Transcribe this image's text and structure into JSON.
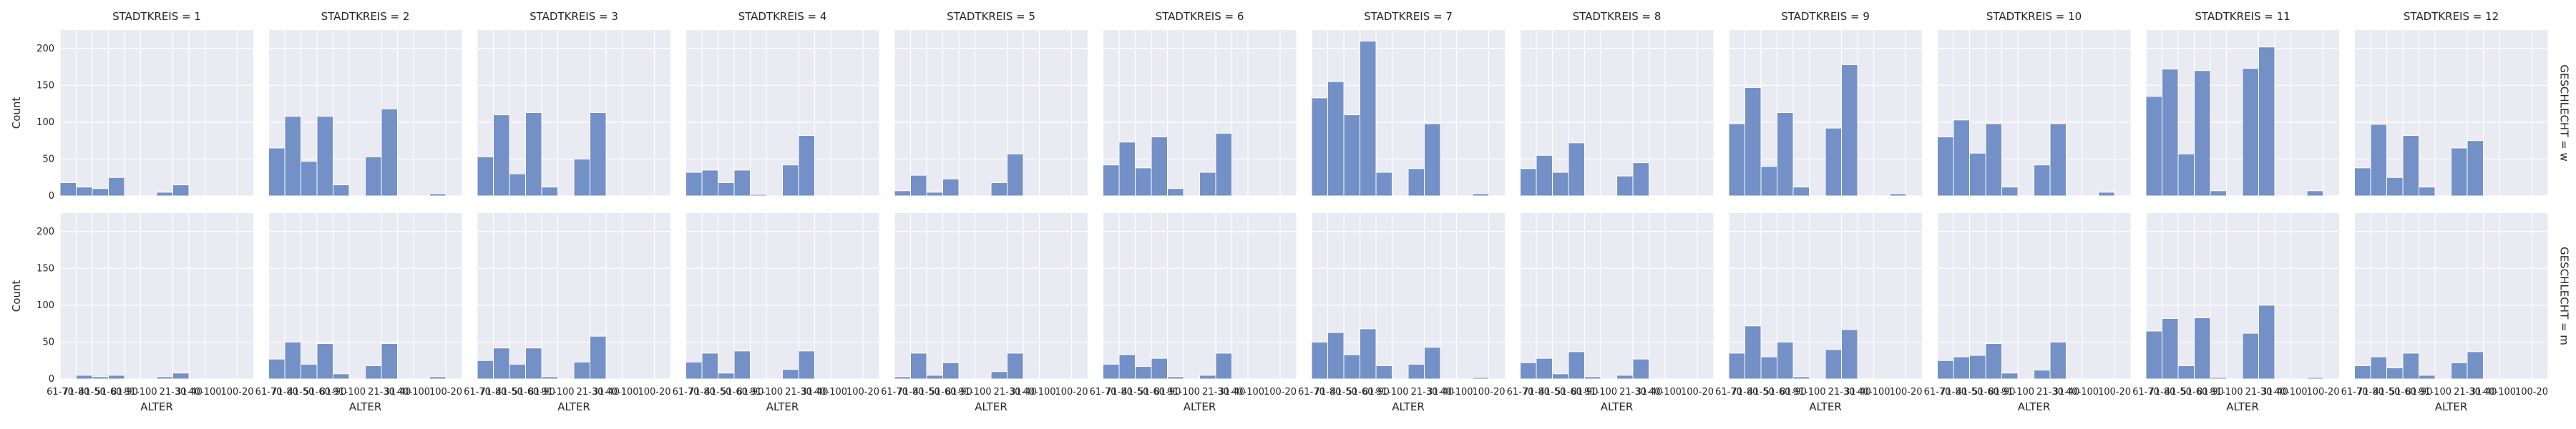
{
  "chart_data": {
    "type": "bar",
    "facet_col_labels": [
      "STADTKREIS = 1",
      "STADTKREIS = 2",
      "STADTKREIS = 3",
      "STADTKREIS = 4",
      "STADTKREIS = 5",
      "STADTKREIS = 6",
      "STADTKREIS = 7",
      "STADTKREIS = 8",
      "STADTKREIS = 9",
      "STADTKREIS = 10",
      "STADTKREIS = 11",
      "STADTKREIS = 12"
    ],
    "facet_row_labels": [
      "GESCHLECHT = w",
      "GESCHLECHT = m"
    ],
    "xlabel": "ALTER",
    "ylabel": "Count",
    "ylim": [
      0,
      225
    ],
    "yticks": [
      0,
      50,
      100,
      150,
      200
    ],
    "x_tick_labels": [
      "61-70",
      "71-80",
      "41-50",
      "51-60",
      "81-90",
      "91-100",
      "21-30",
      "31-40",
      "40-100",
      "100-20"
    ],
    "x_tick_positions": [
      0,
      1,
      2,
      3,
      4,
      5,
      7,
      8,
      9,
      11
    ],
    "bins": 12,
    "grid": true,
    "bar_color": "#7391c6",
    "panel_bg": "#eaeaf2",
    "series": [
      {
        "values": [
          [
            18,
            12,
            10,
            25,
            0,
            0,
            5,
            15,
            0,
            0,
            0,
            0
          ],
          [
            65,
            108,
            47,
            108,
            15,
            0,
            53,
            118,
            0,
            0,
            3,
            0
          ],
          [
            53,
            110,
            30,
            113,
            12,
            0,
            50,
            113,
            0,
            0,
            0,
            0
          ],
          [
            32,
            35,
            18,
            35,
            2,
            0,
            42,
            82,
            0,
            0,
            0,
            0
          ],
          [
            7,
            28,
            5,
            23,
            0,
            0,
            18,
            57,
            0,
            0,
            0,
            0
          ],
          [
            42,
            73,
            38,
            80,
            10,
            0,
            32,
            85,
            0,
            0,
            0,
            0
          ],
          [
            133,
            155,
            110,
            210,
            32,
            0,
            37,
            98,
            0,
            0,
            3,
            0
          ],
          [
            37,
            55,
            32,
            72,
            0,
            0,
            27,
            45,
            0,
            0,
            0,
            0
          ],
          [
            98,
            147,
            40,
            113,
            12,
            0,
            92,
            178,
            0,
            0,
            3,
            0
          ],
          [
            80,
            103,
            58,
            98,
            12,
            0,
            42,
            98,
            0,
            0,
            5,
            0
          ],
          [
            135,
            172,
            57,
            170,
            7,
            0,
            173,
            202,
            0,
            0,
            7,
            0
          ],
          [
            38,
            97,
            25,
            82,
            12,
            0,
            65,
            75,
            0,
            0,
            0,
            0
          ]
        ]
      },
      {
        "values": [
          [
            0,
            5,
            3,
            5,
            0,
            0,
            3,
            8,
            0,
            0,
            0,
            0
          ],
          [
            27,
            50,
            20,
            48,
            7,
            0,
            18,
            48,
            0,
            0,
            3,
            0
          ],
          [
            25,
            42,
            20,
            42,
            3,
            0,
            23,
            58,
            0,
            0,
            0,
            0
          ],
          [
            23,
            35,
            8,
            38,
            0,
            0,
            13,
            38,
            0,
            0,
            0,
            0
          ],
          [
            3,
            35,
            5,
            22,
            0,
            0,
            10,
            35,
            0,
            0,
            0,
            0
          ],
          [
            20,
            33,
            17,
            28,
            3,
            0,
            5,
            35,
            0,
            0,
            0,
            0
          ],
          [
            50,
            63,
            33,
            68,
            18,
            0,
            20,
            43,
            0,
            0,
            2,
            0
          ],
          [
            22,
            28,
            7,
            37,
            3,
            0,
            5,
            27,
            0,
            0,
            0,
            0
          ],
          [
            35,
            72,
            30,
            50,
            3,
            0,
            40,
            67,
            0,
            0,
            0,
            0
          ],
          [
            25,
            30,
            32,
            48,
            8,
            0,
            12,
            50,
            0,
            0,
            0,
            0
          ],
          [
            65,
            82,
            18,
            83,
            2,
            0,
            62,
            100,
            0,
            0,
            2,
            0
          ],
          [
            18,
            30,
            15,
            35,
            5,
            0,
            22,
            37,
            0,
            0,
            0,
            0
          ]
        ]
      }
    ]
  }
}
